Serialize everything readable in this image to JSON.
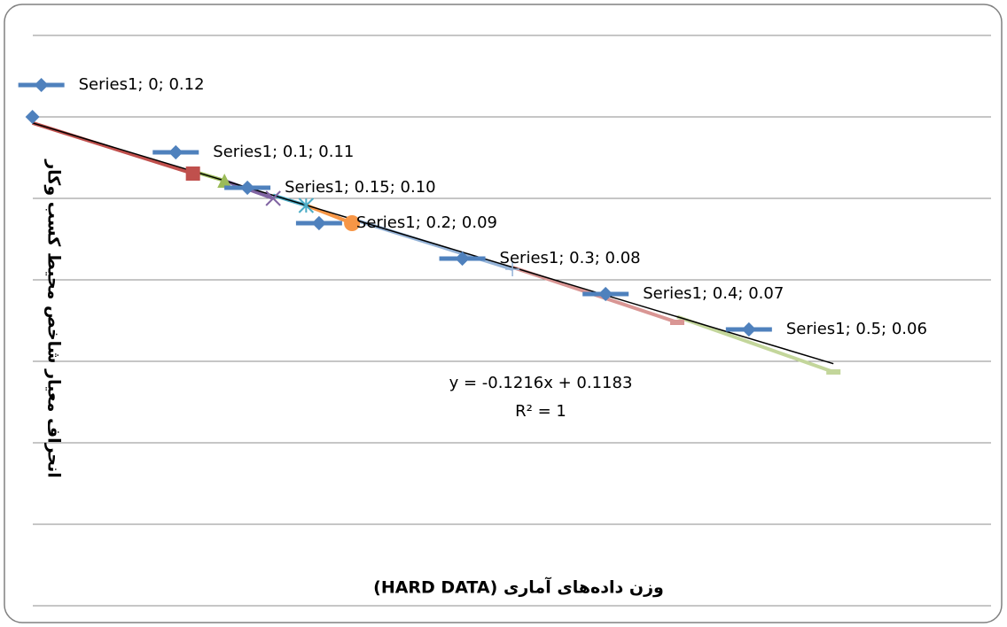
{
  "chart_data": {
    "type": "scatter",
    "x_label": "وزن داده‌های آماری (HARD DATA)",
    "y_label": "انحراف معیار شاخص محیط کسب وکار",
    "series": [
      {
        "name": "Series1",
        "color": "#4f81bd",
        "x": [
          0,
          0.1,
          0.15,
          0.2,
          0.3,
          0.4,
          0.5
        ],
        "values": [
          0.12,
          0.11,
          0.1,
          0.09,
          0.08,
          0.07,
          0.06
        ],
        "data_labels": [
          "Series1; 0; 0.12",
          "Series1; 0.1; 0.11",
          "Series1; 0.15; 0.10",
          "Series1; 0.2; 0.09",
          "Series1; 0.3; 0.08",
          "Series1; 0.4; 0.07",
          "Series1; 0.5; 0.06"
        ]
      }
    ],
    "markers": [
      {
        "shape": "square",
        "color": "#c0504d",
        "x": 0.112,
        "y": 0.104
      },
      {
        "shape": "triangle",
        "color": "#9bbb59",
        "x": 0.134,
        "y": 0.102
      },
      {
        "shape": "cross",
        "color": "#8064a2",
        "x": 0.168,
        "y": 0.097
      },
      {
        "shape": "star",
        "color": "#4bacc6",
        "x": 0.191,
        "y": 0.095
      },
      {
        "shape": "circle",
        "color": "#f79646",
        "x": 0.223,
        "y": 0.09
      },
      {
        "shape": "plus",
        "color": "#95b3d7",
        "x": 0.335,
        "y": 0.077
      },
      {
        "shape": "dash",
        "color": "#d99694",
        "x": 0.45,
        "y": 0.062
      },
      {
        "shape": "dash",
        "color": "#c3d69b",
        "x": 0.559,
        "y": 0.048
      }
    ],
    "trendline": {
      "slope": -0.1216,
      "intercept": 0.1183,
      "x_end": 0.559,
      "color": "#000000",
      "equation": "y = -0.1216x + 0.1183",
      "r2_label": "R² = 1"
    },
    "xlim": [
      -0.014,
      0.669
    ],
    "ylim": [
      -0.018,
      0.143
    ],
    "grid": true
  }
}
